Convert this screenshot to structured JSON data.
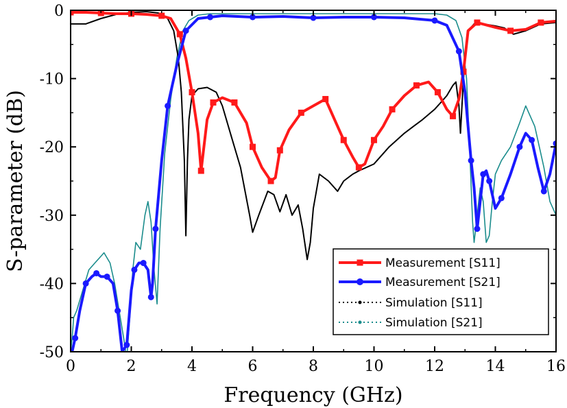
{
  "chart_data": {
    "type": "line",
    "xlabel": "Frequency (GHz)",
    "ylabel": "S-parameter (dB)",
    "xlim": [
      0,
      16
    ],
    "ylim": [
      -50,
      0
    ],
    "xticks": [
      0,
      2,
      4,
      6,
      8,
      10,
      12,
      14,
      16
    ],
    "yticks": [
      0,
      -10,
      -20,
      -30,
      -40,
      -50
    ],
    "xtick_labels": [
      "0",
      "2",
      "4",
      "6",
      "8",
      "10",
      "12",
      "14",
      "16"
    ],
    "ytick_labels": [
      "0",
      "-10",
      "-20",
      "-30",
      "-40",
      "-50"
    ],
    "grid": false,
    "legend_position": "bottom-right",
    "series": [
      {
        "name": "Measurement [S11]",
        "color": "#ff1a1a",
        "style": "solid-square-markers",
        "x": [
          0,
          0.5,
          1,
          1.5,
          2,
          2.5,
          3,
          3.3,
          3.6,
          3.8,
          4.0,
          4.2,
          4.3,
          4.5,
          4.7,
          5.0,
          5.4,
          5.8,
          6.0,
          6.3,
          6.6,
          6.75,
          6.9,
          7.2,
          7.6,
          8.0,
          8.4,
          8.7,
          9.0,
          9.3,
          9.5,
          9.7,
          10.0,
          10.3,
          10.6,
          11.0,
          11.4,
          11.8,
          12.1,
          12.4,
          12.6,
          12.8,
          12.95,
          13.1,
          13.4,
          14.0,
          14.5,
          15.0,
          15.5,
          16.0
        ],
        "y": [
          -0.3,
          -0.3,
          -0.4,
          -0.5,
          -0.5,
          -0.6,
          -0.8,
          -1.2,
          -3.5,
          -7.0,
          -12.0,
          -18.0,
          -23.5,
          -16.0,
          -13.5,
          -12.8,
          -13.5,
          -16.5,
          -20.0,
          -23.0,
          -25.0,
          -24.5,
          -20.5,
          -17.5,
          -15.0,
          -14.0,
          -13.0,
          -16.0,
          -19.0,
          -21.5,
          -23.0,
          -22.5,
          -19.0,
          -17.0,
          -14.5,
          -12.5,
          -11.0,
          -10.5,
          -12.0,
          -14.5,
          -15.5,
          -13.0,
          -9.0,
          -3.0,
          -1.8,
          -2.5,
          -3.0,
          -2.8,
          -1.8,
          -1.6
        ]
      },
      {
        "name": "Measurement [S21]",
        "color": "#1a1aff",
        "style": "solid-circle-markers",
        "x": [
          0,
          0.05,
          0.15,
          0.3,
          0.5,
          0.7,
          0.85,
          1.0,
          1.2,
          1.4,
          1.55,
          1.7,
          1.85,
          2.0,
          2.1,
          2.25,
          2.4,
          2.55,
          2.65,
          2.7,
          2.8,
          3.0,
          3.2,
          3.5,
          3.8,
          4.2,
          4.6,
          5.0,
          6.0,
          7.0,
          8.0,
          9.0,
          10.0,
          11.0,
          12.0,
          12.4,
          12.8,
          13.0,
          13.2,
          13.3,
          13.4,
          13.5,
          13.6,
          13.7,
          13.8,
          14.0,
          14.2,
          14.5,
          14.8,
          15.0,
          15.2,
          15.4,
          15.6,
          15.8,
          16.0
        ],
        "y": [
          -50,
          -50,
          -48,
          -44,
          -40,
          -39,
          -38.5,
          -39,
          -39,
          -40,
          -44,
          -50,
          -49,
          -41,
          -38,
          -37,
          -37,
          -38,
          -42,
          -40,
          -32,
          -22,
          -14,
          -8,
          -3,
          -1.2,
          -1,
          -0.8,
          -1.0,
          -0.9,
          -1.1,
          -1.0,
          -1.0,
          -1.1,
          -1.5,
          -2.2,
          -6.0,
          -12.0,
          -22.0,
          -26.0,
          -32.0,
          -28.0,
          -24.0,
          -23.5,
          -25.0,
          -29.0,
          -27.5,
          -24.0,
          -20.0,
          -18.0,
          -19.0,
          -23.0,
          -26.5,
          -24.0,
          -19.5
        ]
      },
      {
        "name": "Simulation [S11]",
        "color": "#000000",
        "style": "solid",
        "x": [
          0,
          0.5,
          1.0,
          1.5,
          2.0,
          2.5,
          2.9,
          3.2,
          3.4,
          3.55,
          3.65,
          3.75,
          3.8,
          3.85,
          3.9,
          4.0,
          4.2,
          4.5,
          4.8,
          5.0,
          5.3,
          5.6,
          5.9,
          6.0,
          6.2,
          6.5,
          6.7,
          6.9,
          7.1,
          7.3,
          7.5,
          7.65,
          7.8,
          7.9,
          8.0,
          8.2,
          8.5,
          8.8,
          9.0,
          9.3,
          9.5,
          10.0,
          10.5,
          11.0,
          11.3,
          11.6,
          12.0,
          12.2,
          12.4,
          12.6,
          12.7,
          12.8,
          12.85,
          12.95,
          13.1,
          13.3,
          13.6,
          14.0,
          14.3,
          14.6,
          15.0,
          15.5,
          16.0
        ],
        "y": [
          -2.0,
          -2.0,
          -1.2,
          -0.6,
          -0.3,
          -0.2,
          -0.4,
          -1.2,
          -3.0,
          -7.0,
          -12.0,
          -22.0,
          -33.0,
          -22.0,
          -16.0,
          -12.5,
          -11.5,
          -11.3,
          -12.0,
          -14.0,
          -18.5,
          -23.0,
          -30.0,
          -32.5,
          -30.0,
          -26.5,
          -27.0,
          -29.5,
          -27.0,
          -30.0,
          -28.5,
          -32.0,
          -36.5,
          -34.0,
          -29.0,
          -24.0,
          -25.0,
          -26.5,
          -25.0,
          -24.0,
          -23.5,
          -22.5,
          -20.0,
          -18.0,
          -17.0,
          -16.0,
          -14.5,
          -13.5,
          -12.5,
          -11.0,
          -10.5,
          -14.0,
          -18.0,
          -10.0,
          -3.0,
          -2.0,
          -2.0,
          -2.3,
          -2.6,
          -3.5,
          -3.0,
          -2.0,
          -1.8
        ]
      },
      {
        "name": "Simulation [S21]",
        "color": "#1a8c8c",
        "style": "solid",
        "x": [
          0,
          0.05,
          0.1,
          0.2,
          0.4,
          0.6,
          0.8,
          1.0,
          1.1,
          1.3,
          1.45,
          1.6,
          1.75,
          1.85,
          1.95,
          2.05,
          2.15,
          2.3,
          2.45,
          2.55,
          2.65,
          2.75,
          2.85,
          2.95,
          3.1,
          3.3,
          3.5,
          3.7,
          3.9,
          4.2,
          4.6,
          5.0,
          6.0,
          7.0,
          8.0,
          9.0,
          10.0,
          11.0,
          12.0,
          12.4,
          12.7,
          12.9,
          13.05,
          13.15,
          13.25,
          13.3,
          13.4,
          13.5,
          13.6,
          13.7,
          13.8,
          13.9,
          14.0,
          14.2,
          14.5,
          14.8,
          15.0,
          15.3,
          15.6,
          15.8,
          16.0
        ],
        "y": [
          -50,
          -48,
          -45,
          -44,
          -41,
          -38,
          -37,
          -36,
          -35.5,
          -37,
          -40,
          -44,
          -48,
          -51,
          -45,
          -38,
          -34,
          -35,
          -30,
          -28,
          -31,
          -38,
          -43,
          -32,
          -21,
          -13,
          -7,
          -3,
          -1.5,
          -0.7,
          -0.5,
          -0.5,
          -0.5,
          -0.5,
          -0.5,
          -0.5,
          -0.5,
          -0.5,
          -0.5,
          -0.7,
          -1.5,
          -4.0,
          -10.0,
          -20.0,
          -31.0,
          -34.0,
          -30.0,
          -26.0,
          -28.0,
          -34.0,
          -33.0,
          -28.0,
          -24.0,
          -22.0,
          -20.0,
          -16.5,
          -14.0,
          -17.0,
          -23.0,
          -28.0,
          -30.0
        ]
      }
    ]
  }
}
